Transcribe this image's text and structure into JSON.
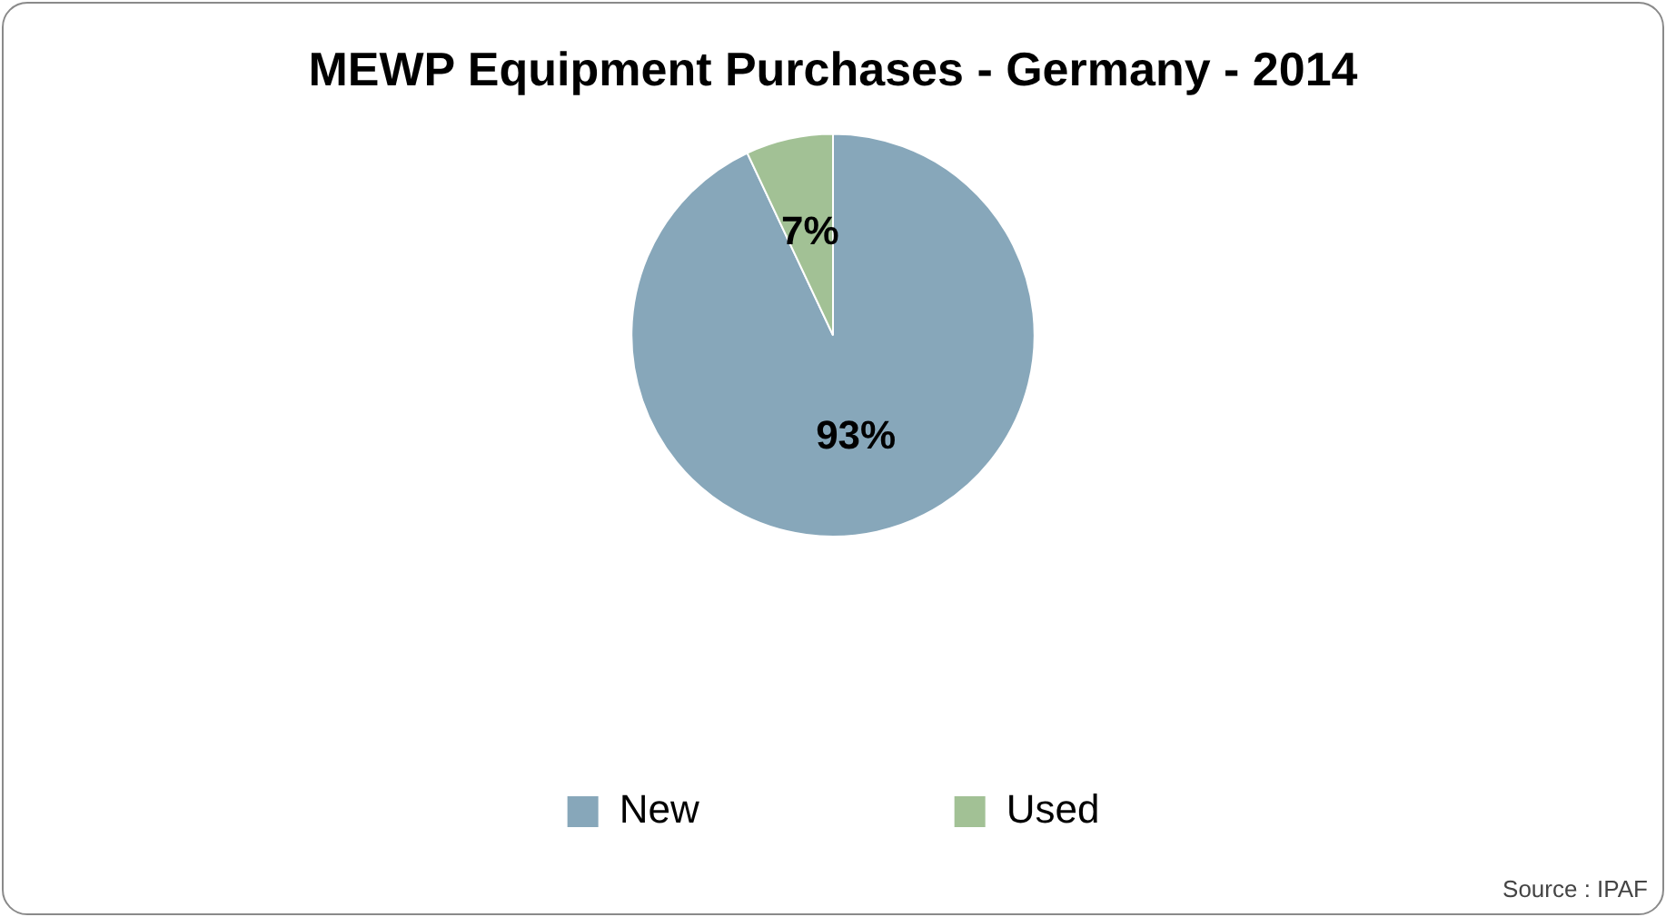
{
  "chart_data": {
    "type": "pie",
    "title": "MEWP Equipment Purchases - Germany - 2014",
    "categories": [
      "New",
      "Used"
    ],
    "values": [
      93,
      7
    ],
    "colors": [
      "#87a7ba",
      "#a2c195"
    ],
    "value_labels": [
      "93%",
      "7%"
    ],
    "legend": "bottom",
    "annotations": [
      "Source : IPAF"
    ]
  }
}
